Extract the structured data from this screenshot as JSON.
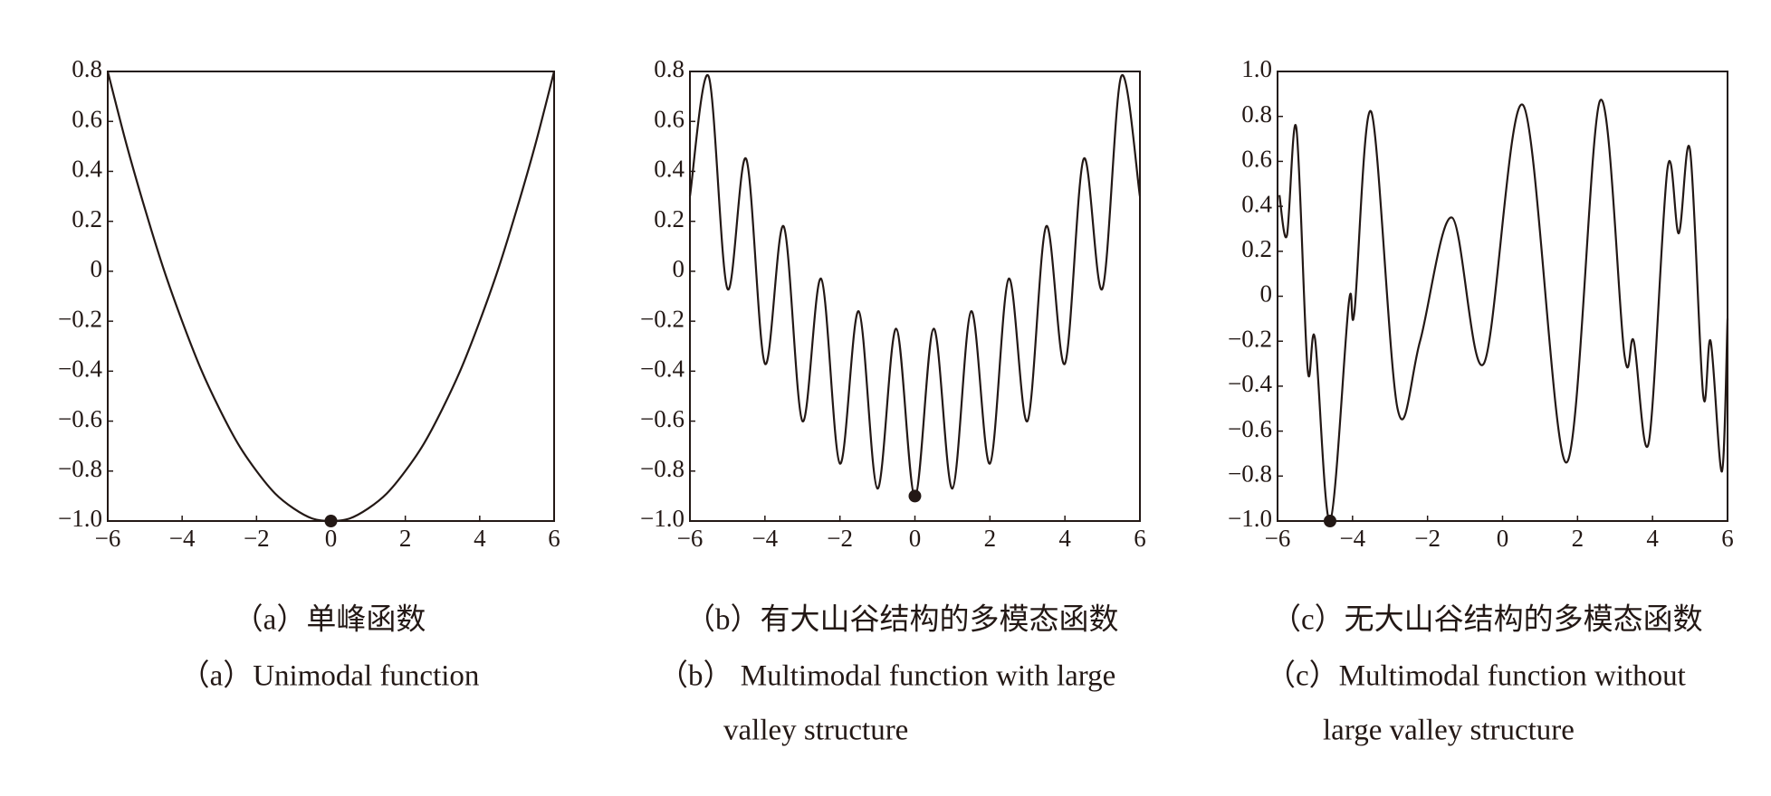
{
  "chart_data": [
    {
      "type": "line",
      "color": "#231815",
      "x": [
        -6,
        -5.5,
        -5,
        -4.5,
        -4,
        -3.5,
        -3,
        -2.5,
        -2,
        -1.5,
        -1,
        -0.5,
        0,
        0.5,
        1,
        1.5,
        2,
        2.5,
        3,
        3.5,
        4,
        4.5,
        5,
        5.5,
        6
      ],
      "values": [
        0.8,
        0.51,
        0.25,
        0.01,
        -0.2,
        -0.39,
        -0.55,
        -0.69,
        -0.8,
        -0.89,
        -0.95,
        -0.99,
        -1.0,
        -0.99,
        -0.95,
        -0.89,
        -0.8,
        -0.69,
        -0.55,
        -0.39,
        -0.2,
        0.01,
        0.25,
        0.51,
        0.8
      ],
      "marker": {
        "x": 0,
        "y": -1.0
      },
      "xlim": [
        -6,
        6
      ],
      "ylim": [
        -1.0,
        0.8
      ],
      "xticks": [
        {
          "value": -6,
          "label": "−6"
        },
        {
          "value": -4,
          "label": "−4"
        },
        {
          "value": -2,
          "label": "−2"
        },
        0,
        2,
        4,
        6
      ],
      "yticks": [
        {
          "value": -1.0,
          "label": "−1.0"
        },
        {
          "value": -0.8,
          "label": "−0.8"
        },
        {
          "value": -0.6,
          "label": "−0.6"
        },
        {
          "value": -0.4,
          "label": "−0.4"
        },
        {
          "value": -0.2,
          "label": "−0.2"
        },
        0,
        0.2,
        0.4,
        0.6,
        0.8
      ],
      "caption_cn": "（a）单峰函数",
      "caption_en": [
        "（a）Unimodal function"
      ]
    },
    {
      "type": "line",
      "color": "#231815",
      "x": [
        -6,
        -5.5,
        -5,
        -4.5,
        -4,
        -3.5,
        -3,
        -2.5,
        -2,
        -1.5,
        -1,
        -0.5,
        0,
        0.5,
        1,
        1.5,
        2,
        2.5,
        3,
        3.5,
        4,
        4.5,
        5,
        5.5,
        6
      ],
      "values": [
        0.3,
        0.78,
        -0.07,
        0.45,
        -0.37,
        0.18,
        -0.6,
        -0.03,
        -0.77,
        -0.16,
        -0.87,
        -0.23,
        -0.9,
        -0.23,
        -0.87,
        -0.16,
        -0.77,
        -0.03,
        -0.6,
        0.18,
        -0.37,
        0.45,
        -0.07,
        0.78,
        0.3
      ],
      "marker": {
        "x": 0,
        "y": -0.9
      },
      "xlim": [
        -6,
        6
      ],
      "ylim": [
        -1.0,
        0.8
      ],
      "xticks": [
        {
          "value": -6,
          "label": "−6"
        },
        {
          "value": -4,
          "label": "−4"
        },
        {
          "value": -2,
          "label": "−2"
        },
        0,
        2,
        4,
        6
      ],
      "yticks": [
        {
          "value": -1.0,
          "label": "−1.0"
        },
        {
          "value": -0.8,
          "label": "−0.8"
        },
        {
          "value": -0.6,
          "label": "−0.6"
        },
        {
          "value": -0.4,
          "label": "−0.4"
        },
        {
          "value": -0.2,
          "label": "−0.2"
        },
        0,
        0.2,
        0.4,
        0.6,
        0.8
      ],
      "caption_cn": "（b）有大山谷结构的多模态函数",
      "caption_en": [
        "（b） Multimodal function with large",
        "valley structure"
      ]
    },
    {
      "type": "line",
      "color": "#231815",
      "x": [
        -5.95,
        -5.75,
        -5.5,
        -5.2,
        -5,
        -4.6,
        -4.1,
        -3.95,
        -3.5,
        -2.8,
        -2.2,
        -1.35,
        -0.5,
        0.55,
        1.7,
        2.6,
        3.25,
        3.5,
        3.9,
        4.4,
        4.7,
        5,
        5.35,
        5.55,
        5.85,
        6
      ],
      "values": [
        0.45,
        0.27,
        0.75,
        -0.32,
        -0.19,
        -1.0,
        -0.03,
        -0.07,
        0.82,
        -0.5,
        -0.2,
        0.35,
        -0.3,
        0.85,
        -0.74,
        0.87,
        -0.26,
        -0.2,
        -0.65,
        0.57,
        0.28,
        0.65,
        -0.44,
        -0.2,
        -0.78,
        -0.1
      ],
      "marker": {
        "x": -4.6,
        "y": -1.0
      },
      "xlim": [
        -6,
        6
      ],
      "ylim": [
        -1.0,
        1.0
      ],
      "xticks": [
        {
          "value": -6,
          "label": "−6"
        },
        {
          "value": -4,
          "label": "−4"
        },
        {
          "value": -2,
          "label": "−2"
        },
        0,
        2,
        4,
        6
      ],
      "yticks": [
        {
          "value": -1.0,
          "label": "−1.0"
        },
        {
          "value": -0.8,
          "label": "−0.8"
        },
        {
          "value": -0.6,
          "label": "−0.6"
        },
        {
          "value": -0.4,
          "label": "−0.4"
        },
        {
          "value": -0.2,
          "label": "−0.2"
        },
        0,
        0.2,
        0.4,
        0.6,
        0.8,
        {
          "value": 1.0,
          "label": "1.0"
        }
      ],
      "caption_cn": "（c）无大山谷结构的多模态函数",
      "caption_en": [
        "（c）Multimodal function without",
        "large valley structure"
      ]
    }
  ]
}
